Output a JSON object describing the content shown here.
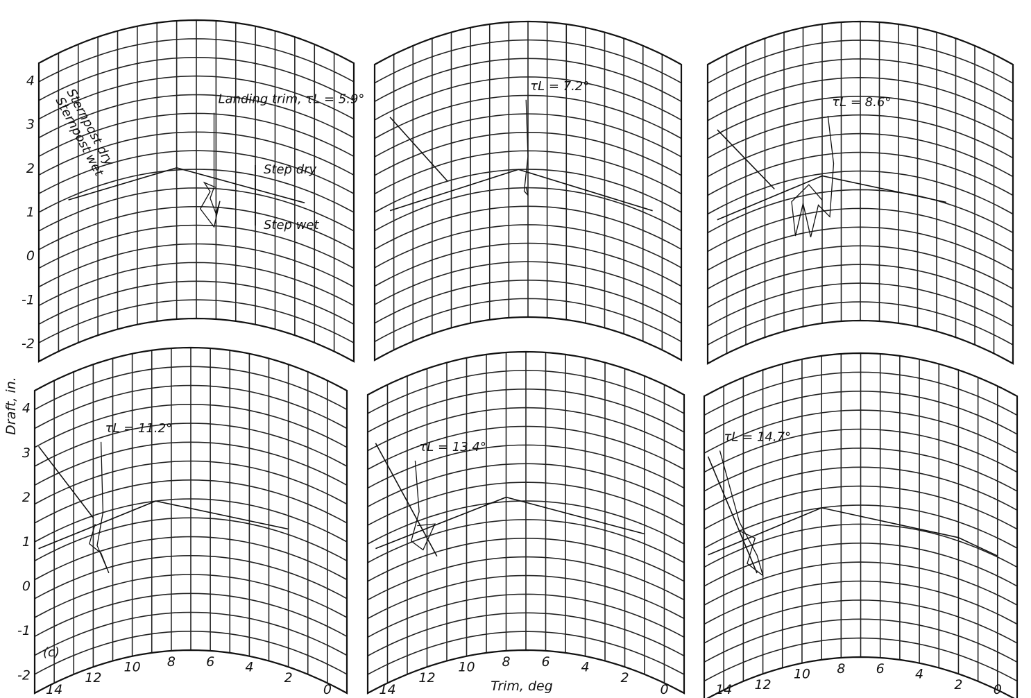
{
  "figure": {
    "xlabel": "Trim, deg",
    "ylabel": "Draft, in.",
    "panel_marker": "(c)"
  },
  "chart_data": [
    {
      "type": "line",
      "title": "",
      "label": "Landing trim, τL = 5.9°",
      "xlim": [
        -1,
        15
      ],
      "ylim": [
        -2.4,
        4.4
      ],
      "x_ticks": [],
      "y_ticks": [
        "4",
        "3",
        "2",
        "1",
        "0",
        "-1",
        "-2"
      ],
      "annotations": [
        "Sternpost dry",
        "Sternpost wet",
        "Step dry",
        "Step wet"
      ],
      "series": [
        {
          "values": [
            [
              13.5,
              0.95
            ],
            [
              8,
              1.05
            ],
            [
              1.5,
              0.7
            ]
          ]
        },
        {
          "values": [
            [
              6.1,
              2.3
            ],
            [
              6.1,
              0.6
            ],
            [
              6.3,
              0.35
            ],
            [
              6.0,
              0.0
            ],
            [
              5.8,
              0.3
            ],
            [
              6.1,
              -0.3
            ],
            [
              6.8,
              0.1
            ],
            [
              6.3,
              0.5
            ],
            [
              6.6,
              0.7
            ],
            [
              6.0,
              0.6
            ]
          ]
        }
      ]
    },
    {
      "type": "line",
      "title": "",
      "label": "τL = 7.2°",
      "xlim": [
        -1,
        15
      ],
      "ylim": [
        -2.4,
        4.4
      ],
      "x_ticks": [],
      "y_ticks": [],
      "series": [
        {
          "values": [
            [
              14.2,
              3.0
            ],
            [
              11.2,
              1.0
            ]
          ]
        },
        {
          "values": [
            [
              14.2,
              0.85
            ],
            [
              7.5,
              1.0
            ],
            [
              0.5,
              0.7
            ]
          ]
        },
        {
          "values": [
            [
              7.1,
              2.6
            ],
            [
              7.0,
              1.3
            ],
            [
              7.2,
              0.5
            ],
            [
              7.0,
              0.4
            ],
            [
              7.1,
              0.6
            ]
          ]
        }
      ]
    },
    {
      "type": "line",
      "title": "",
      "label": "τL = 8.6°",
      "xlim": [
        -1,
        15
      ],
      "ylim": [
        -2.4,
        4.4
      ],
      "x_ticks": [],
      "y_ticks": [],
      "series": [
        {
          "values": [
            [
              14.5,
              2.8
            ],
            [
              11.5,
              0.9
            ]
          ]
        },
        {
          "values": [
            [
              14.5,
              0.75
            ],
            [
              9,
              0.95
            ],
            [
              2.5,
              0.6
            ]
          ]
        },
        {
          "values": [
            [
              8.7,
              2.3
            ],
            [
              8.4,
              1.2
            ],
            [
              8.6,
              0.0
            ],
            [
              9.2,
              0.3
            ],
            [
              9.6,
              -0.4
            ],
            [
              10.0,
              0.4
            ],
            [
              10.4,
              -0.3
            ],
            [
              10.6,
              0.5
            ],
            [
              9.7,
              0.8
            ],
            [
              9.0,
              0.4
            ]
          ]
        }
      ]
    },
    {
      "type": "line",
      "title": "",
      "label": "τL = 11.2°",
      "xlim": [
        -1,
        15
      ],
      "ylim": [
        -2.4,
        4.4
      ],
      "x_ticks": [
        "14",
        "12",
        "10",
        "8",
        "6",
        "4",
        "2",
        "0"
      ],
      "y_ticks": [
        "4",
        "3",
        "2",
        "1",
        "0",
        "-1",
        "-2"
      ],
      "series": [
        {
          "values": [
            [
              14.8,
              3.1
            ],
            [
              12.0,
              0.95
            ]
          ]
        },
        {
          "values": [
            [
              14.8,
              0.8
            ],
            [
              8.8,
              1.0
            ],
            [
              2.0,
              0.7
            ]
          ]
        },
        {
          "values": [
            [
              11.6,
              2.6
            ],
            [
              11.5,
              1.0
            ],
            [
              11.8,
              0.3
            ],
            [
              11.2,
              -0.4
            ],
            [
              11.6,
              0.1
            ],
            [
              12.2,
              0.4
            ],
            [
              11.9,
              0.8
            ]
          ]
        }
      ]
    },
    {
      "type": "line",
      "title": "",
      "label": "τL = 13.4°",
      "xlim": [
        -1,
        15
      ],
      "ylim": [
        -2.4,
        4.4
      ],
      "x_ticks": [
        "14",
        "12",
        "10",
        "8",
        "6",
        "4",
        "2",
        "0"
      ],
      "y_ticks": [],
      "series": [
        {
          "values": [
            [
              14.6,
              3.2
            ],
            [
              11.5,
              0.05
            ]
          ]
        },
        {
          "values": [
            [
              14.6,
              0.8
            ],
            [
              8.0,
              1.1
            ],
            [
              1.0,
              0.8
            ]
          ]
        },
        {
          "values": [
            [
              12.6,
              2.4
            ],
            [
              12.4,
              1.2
            ],
            [
              12.8,
              0.6
            ],
            [
              12.2,
              0.3
            ],
            [
              11.6,
              0.8
            ],
            [
              12.5,
              0.9
            ]
          ]
        }
      ]
    },
    {
      "type": "line",
      "title": "",
      "label": "τL = 14.7°",
      "xlim": [
        -1,
        15
      ],
      "ylim": [
        -2.4,
        4.4
      ],
      "x_ticks": [
        "14",
        "12",
        "10",
        "8",
        "6",
        "4",
        "2",
        "0"
      ],
      "y_ticks": [],
      "series": [
        {
          "values": [
            [
              14.8,
              3.0
            ],
            [
              12.3,
              -0.1
            ]
          ]
        },
        {
          "values": [
            [
              14.8,
              0.8
            ],
            [
              9.0,
              1.0
            ],
            [
              2.0,
              0.65
            ],
            [
              0.0,
              0.6
            ]
          ]
        },
        {
          "values": [
            [
              14.2,
              3.0
            ],
            [
              13.2,
              1.2
            ],
            [
              12.3,
              0.3
            ],
            [
              12.0,
              -0.2
            ],
            [
              12.8,
              0.2
            ],
            [
              12.4,
              0.7
            ],
            [
              13.2,
              1.0
            ]
          ]
        }
      ]
    }
  ]
}
